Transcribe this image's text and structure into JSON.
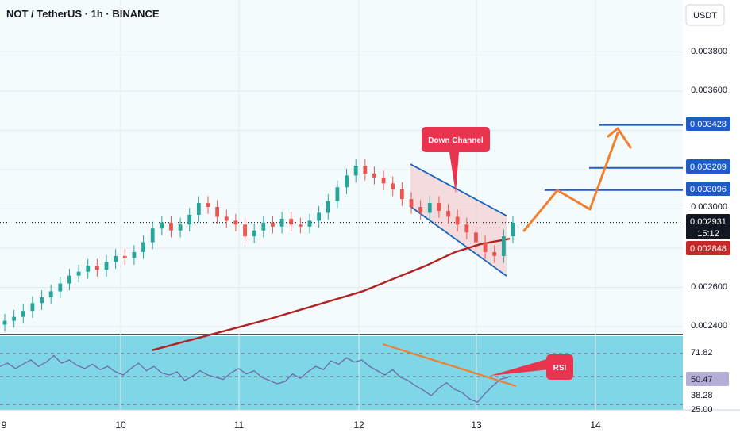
{
  "header": {
    "title": "NOT / TetherUS · 1h · BINANCE"
  },
  "colors": {
    "background": "#ffffff",
    "price_pane_bg": "#f4fbfd",
    "rsi_pane_bg": "#7fd6e6",
    "up_candle": "#26a69a",
    "down_candle": "#ef5350",
    "ma_line": "#b22222",
    "channel_fill": "#f3c6c8",
    "channel_line": "#1565c0",
    "projection_arrow": "#f08030",
    "level_blue": "#1e5bc6",
    "callout_red": "#e8344e",
    "current_price_label": "#131722",
    "ma_price_label": "#c62828",
    "rsi_label_bg": "#b4aed6",
    "rsi_line": "#6d6aa8",
    "rsi_trend": "#f08030",
    "grid": "#e3e9ee"
  },
  "axis": {
    "currency_button": "USDT",
    "price_ticks": [
      "0.003800",
      "0.003600",
      "0.003000",
      "0.002600",
      "0.002400"
    ],
    "date_ticks": [
      "9",
      "10",
      "11",
      "12",
      "13",
      "14"
    ],
    "rsi_ticks": [
      "71.82",
      "38.28",
      "25.00"
    ]
  },
  "price_labels": {
    "level_1": "0.003428",
    "level_2": "0.003209",
    "level_3": "0.003096",
    "current_price": "0.002931",
    "countdown": "15:12",
    "ma_price": "0.002848",
    "rsi_current": "50.47"
  },
  "annotations": {
    "down_channel": "Down Channel",
    "rsi": "RSI"
  },
  "chart_data": {
    "type": "candlestick",
    "symbol": "NOT / TetherUS",
    "timeframe": "1h",
    "exchange": "BINANCE",
    "x_ticks": [
      "9",
      "10",
      "11",
      "12",
      "13",
      "14"
    ],
    "y_ticks": [
      0.0024,
      0.0026,
      0.003,
      0.0036,
      0.0038
    ],
    "ylim": [
      0.00237,
      0.00394
    ],
    "candles_close_approx": [
      0.00243,
      0.00245,
      0.00248,
      0.00252,
      0.00255,
      0.00258,
      0.00262,
      0.00266,
      0.00268,
      0.00271,
      0.00269,
      0.00273,
      0.00276,
      0.00275,
      0.00278,
      0.00283,
      0.0029,
      0.00293,
      0.00289,
      0.00292,
      0.00297,
      0.00303,
      0.00301,
      0.00296,
      0.00294,
      0.00292,
      0.00286,
      0.00289,
      0.00293,
      0.00291,
      0.00295,
      0.00292,
      0.00291,
      0.00294,
      0.00298,
      0.00304,
      0.00311,
      0.00317,
      0.00322,
      0.00318,
      0.00316,
      0.00313,
      0.0031,
      0.00305,
      0.00301,
      0.00298,
      0.00303,
      0.00299,
      0.00296,
      0.00292,
      0.00288,
      0.00283,
      0.00278,
      0.00276,
      0.00286,
      0.00293
    ],
    "ma_line": [
      [
        0.0,
        0.00228
      ],
      [
        0.28,
        0.00244
      ],
      [
        0.5,
        0.00258
      ],
      [
        0.65,
        0.00271
      ],
      [
        0.72,
        0.00278
      ],
      [
        0.78,
        0.00282
      ],
      [
        0.85,
        0.002848
      ]
    ],
    "down_channel": {
      "upper": [
        0.003228,
        0.002965
      ],
      "lower": [
        0.003012,
        0.002658
      ]
    },
    "horizontal_levels": [
      0.003428,
      0.003209,
      0.003096
    ],
    "current_price": 0.002931,
    "ma_value": 0.002848,
    "rsi": {
      "levels": [
        71.82,
        50.47,
        38.28,
        25.0
      ],
      "current": 50.47
    }
  }
}
